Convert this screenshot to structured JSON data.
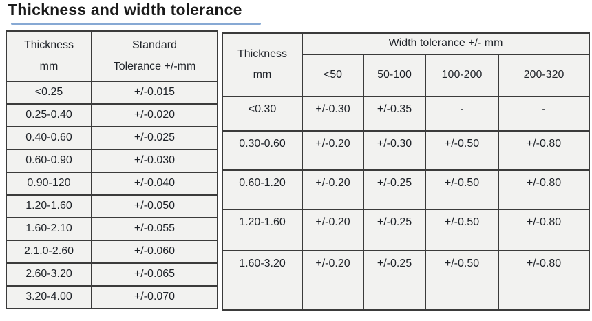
{
  "title": "Thickness and width tolerance",
  "colors": {
    "underline": "#87a9d4",
    "cell_bg": "#f2f2f0",
    "border": "#3b3b3b",
    "text": "#1e2228",
    "title": "#1a1a1a"
  },
  "left_table": {
    "header_thickness": [
      "Thickness",
      "mm"
    ],
    "header_standard": [
      "Standard",
      "Tolerance +/-mm"
    ],
    "rows": [
      [
        "<0.25",
        "+/-0.015"
      ],
      [
        "0.25-0.40",
        "+/-0.020"
      ],
      [
        "0.40-0.60",
        "+/-0.025"
      ],
      [
        "0.60-0.90",
        "+/-0.030"
      ],
      [
        "0.90-120",
        "+/-0.040"
      ],
      [
        "1.20-1.60",
        "+/-0.050"
      ],
      [
        "1.60-2.10",
        "+/-0.055"
      ],
      [
        "2.1.0-2.60",
        "+/-0.060"
      ],
      [
        "2.60-3.20",
        "+/-0.065"
      ],
      [
        "3.20-4.00",
        "+/-0.070"
      ]
    ]
  },
  "right_table": {
    "header_thickness": [
      "Thickness",
      "mm"
    ],
    "span_header": "Width tolerance +/- mm",
    "width_headers": [
      "<50",
      "50-100",
      "100-200",
      "200-320"
    ],
    "rows": [
      [
        "<0.30",
        "+/-0.30",
        "+/-0.35",
        "-",
        "-"
      ],
      [
        "0.30-0.60",
        "+/-0.20",
        "+/-0.30",
        "+/-0.50",
        "+/-0.80"
      ],
      [
        "0.60-1.20",
        "+/-0.20",
        "+/-0.25",
        "+/-0.50",
        "+/-0.80"
      ],
      [
        "1.20-1.60",
        "+/-0.20",
        "+/-0.25",
        "+/-0.50",
        "+/-0.80"
      ],
      [
        "1.60-3.20",
        "+/-0.20",
        "+/-0.25",
        "+/-0.50",
        "+/-0.80"
      ]
    ]
  }
}
